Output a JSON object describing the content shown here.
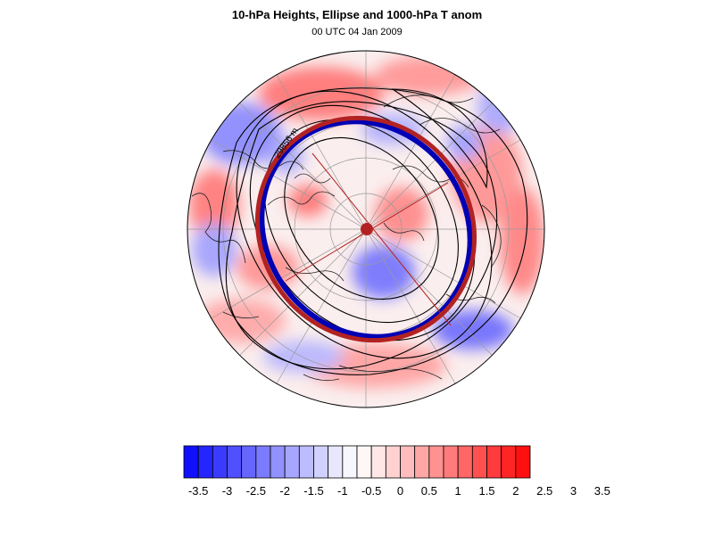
{
  "title": "10-hPa Heights, Ellipse and 1000-hPa T anom",
  "subtitle": "00 UTC 04 Jan 2009",
  "contour_label": "29856 m",
  "colorbar": {
    "colors": [
      "#1010ff",
      "#2525ff",
      "#3b3bff",
      "#5050ff",
      "#6666ff",
      "#7b7bff",
      "#9191ff",
      "#a6a6ff",
      "#bcbcff",
      "#d1d1ff",
      "#e7e7ff",
      "#f6f6ff",
      "#fff6f6",
      "#ffe7e7",
      "#ffd1d1",
      "#ffbcbc",
      "#ffa6a6",
      "#ff9191",
      "#ff7b7b",
      "#ff6666",
      "#ff5050",
      "#ff3b3b",
      "#ff2525",
      "#ff1010"
    ],
    "tick_labels": [
      "-3.5",
      "-3",
      "-2.5",
      "-2",
      "-1.5",
      "-1",
      "-0.5",
      "0",
      "0.5",
      "1",
      "1.5",
      "2",
      "2.5",
      "3",
      "3.5"
    ]
  },
  "map": {
    "projection": "orthographic-polar",
    "ellipse_color": "#b22222",
    "ellipse_inner_color": "#0000b4",
    "center_marker_color": "#b22222"
  }
}
